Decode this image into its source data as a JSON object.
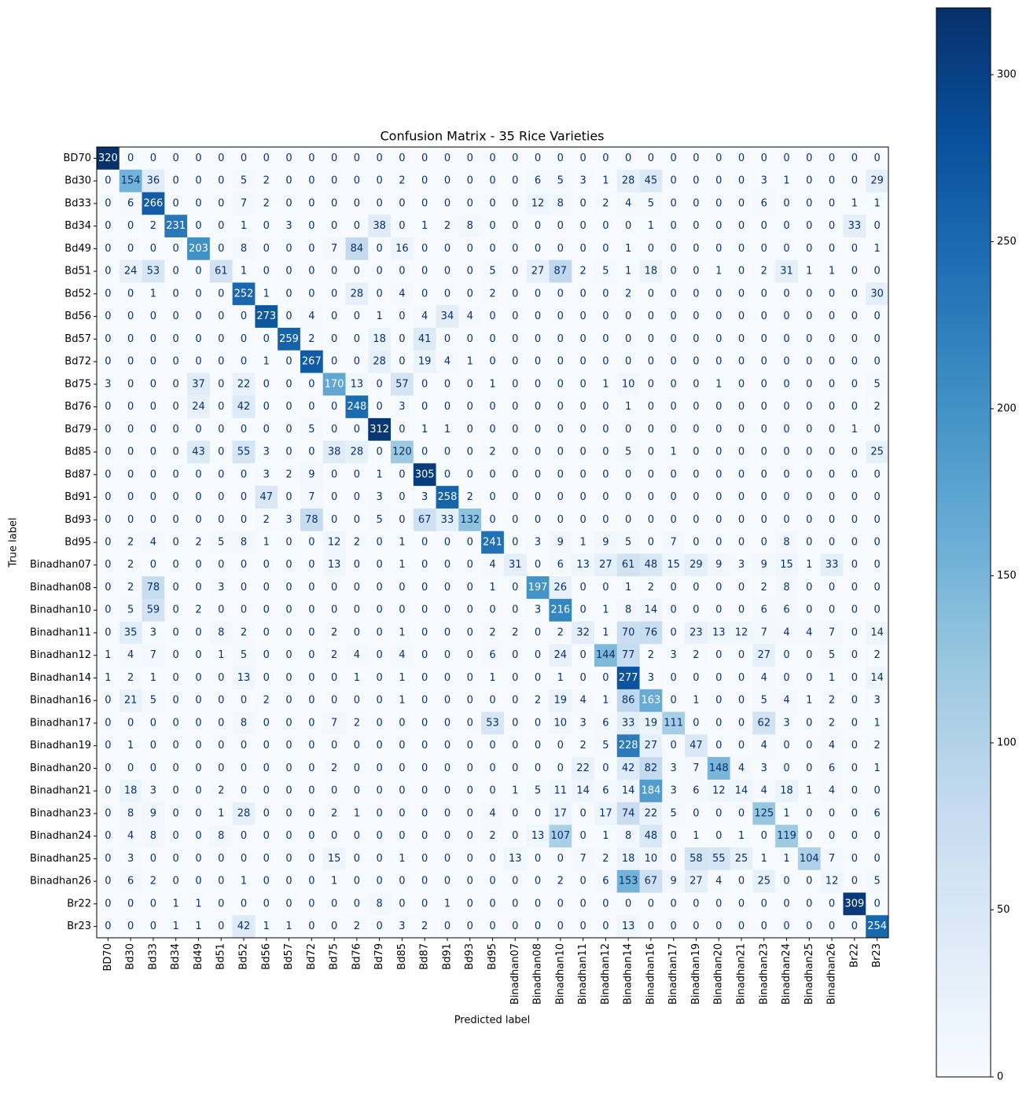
{
  "chart_data": {
    "type": "heatmap",
    "title": "Confusion Matrix - 35 Rice Varieties",
    "xlabel": "Predicted label",
    "ylabel": "True label",
    "x_categories": [
      "BD70",
      "Bd30",
      "Bd33",
      "Bd34",
      "Bd49",
      "Bd51",
      "Bd52",
      "Bd56",
      "Bd57",
      "Bd72",
      "Bd75",
      "Bd76",
      "Bd79",
      "Bd85",
      "Bd87",
      "Bd91",
      "Bd93",
      "Bd95",
      "Binadhan07",
      "Binadhan08",
      "Binadhan10",
      "Binadhan11",
      "Binadhan12",
      "Binadhan14",
      "Binadhan16",
      "Binadhan17",
      "Binadhan19",
      "Binadhan20",
      "Binadhan21",
      "Binadhan23",
      "Binadhan24",
      "Binadhan25",
      "Binadhan26",
      "Br22",
      "Br23"
    ],
    "y_categories": [
      "BD70",
      "Bd30",
      "Bd33",
      "Bd34",
      "Bd49",
      "Bd51",
      "Bd52",
      "Bd56",
      "Bd57",
      "Bd72",
      "Bd75",
      "Bd76",
      "Bd79",
      "Bd85",
      "Bd87",
      "Bd91",
      "Bd93",
      "Bd95",
      "Binadhan07",
      "Binadhan08",
      "Binadhan10",
      "Binadhan11",
      "Binadhan12",
      "Binadhan14",
      "Binadhan16",
      "Binadhan17",
      "Binadhan19",
      "Binadhan20",
      "Binadhan21",
      "Binadhan23",
      "Binadhan24",
      "Binadhan25",
      "Binadhan26",
      "Br22",
      "Br23"
    ],
    "values": [
      [
        320,
        0,
        0,
        0,
        0,
        0,
        0,
        0,
        0,
        0,
        0,
        0,
        0,
        0,
        0,
        0,
        0,
        0,
        0,
        0,
        0,
        0,
        0,
        0,
        0,
        0,
        0,
        0,
        0,
        0,
        0,
        0,
        0,
        0,
        0
      ],
      [
        0,
        154,
        36,
        0,
        0,
        0,
        5,
        2,
        0,
        0,
        0,
        0,
        0,
        2,
        0,
        0,
        0,
        0,
        0,
        6,
        5,
        3,
        1,
        28,
        45,
        0,
        0,
        0,
        0,
        3,
        1,
        0,
        0,
        0,
        29
      ],
      [
        0,
        6,
        266,
        0,
        0,
        0,
        7,
        2,
        0,
        0,
        0,
        0,
        0,
        0,
        0,
        0,
        0,
        0,
        0,
        12,
        8,
        0,
        2,
        4,
        5,
        0,
        0,
        0,
        0,
        6,
        0,
        0,
        0,
        1,
        1
      ],
      [
        0,
        0,
        2,
        231,
        0,
        0,
        1,
        0,
        3,
        0,
        0,
        0,
        38,
        0,
        1,
        2,
        8,
        0,
        0,
        0,
        0,
        0,
        0,
        0,
        1,
        0,
        0,
        0,
        0,
        0,
        0,
        0,
        0,
        33,
        0
      ],
      [
        0,
        0,
        0,
        0,
        203,
        0,
        8,
        0,
        0,
        0,
        7,
        84,
        0,
        16,
        0,
        0,
        0,
        0,
        0,
        0,
        0,
        0,
        0,
        1,
        0,
        0,
        0,
        0,
        0,
        0,
        0,
        0,
        0,
        0,
        1
      ],
      [
        0,
        24,
        53,
        0,
        0,
        61,
        1,
        0,
        0,
        0,
        0,
        0,
        0,
        0,
        0,
        0,
        0,
        5,
        0,
        27,
        87,
        2,
        5,
        1,
        18,
        0,
        0,
        1,
        0,
        2,
        31,
        1,
        1,
        0,
        0
      ],
      [
        0,
        0,
        1,
        0,
        0,
        0,
        252,
        1,
        0,
        0,
        0,
        28,
        0,
        4,
        0,
        0,
        0,
        2,
        0,
        0,
        0,
        0,
        0,
        2,
        0,
        0,
        0,
        0,
        0,
        0,
        0,
        0,
        0,
        0,
        30
      ],
      [
        0,
        0,
        0,
        0,
        0,
        0,
        0,
        273,
        0,
        4,
        0,
        0,
        1,
        0,
        4,
        34,
        4,
        0,
        0,
        0,
        0,
        0,
        0,
        0,
        0,
        0,
        0,
        0,
        0,
        0,
        0,
        0,
        0,
        0,
        0
      ],
      [
        0,
        0,
        0,
        0,
        0,
        0,
        0,
        0,
        259,
        2,
        0,
        0,
        18,
        0,
        41,
        0,
        0,
        0,
        0,
        0,
        0,
        0,
        0,
        0,
        0,
        0,
        0,
        0,
        0,
        0,
        0,
        0,
        0,
        0,
        0
      ],
      [
        0,
        0,
        0,
        0,
        0,
        0,
        0,
        1,
        0,
        267,
        0,
        0,
        28,
        0,
        19,
        4,
        1,
        0,
        0,
        0,
        0,
        0,
        0,
        0,
        0,
        0,
        0,
        0,
        0,
        0,
        0,
        0,
        0,
        0,
        0
      ],
      [
        3,
        0,
        0,
        0,
        37,
        0,
        22,
        0,
        0,
        0,
        170,
        13,
        0,
        57,
        0,
        0,
        0,
        1,
        0,
        0,
        0,
        0,
        1,
        10,
        0,
        0,
        0,
        1,
        0,
        0,
        0,
        0,
        0,
        0,
        5
      ],
      [
        0,
        0,
        0,
        0,
        24,
        0,
        42,
        0,
        0,
        0,
        0,
        248,
        0,
        3,
        0,
        0,
        0,
        0,
        0,
        0,
        0,
        0,
        0,
        1,
        0,
        0,
        0,
        0,
        0,
        0,
        0,
        0,
        0,
        0,
        2
      ],
      [
        0,
        0,
        0,
        0,
        0,
        0,
        0,
        0,
        0,
        5,
        0,
        0,
        312,
        0,
        1,
        1,
        0,
        0,
        0,
        0,
        0,
        0,
        0,
        0,
        0,
        0,
        0,
        0,
        0,
        0,
        0,
        0,
        0,
        1,
        0
      ],
      [
        0,
        0,
        0,
        0,
        43,
        0,
        55,
        3,
        0,
        0,
        38,
        28,
        0,
        120,
        0,
        0,
        0,
        2,
        0,
        0,
        0,
        0,
        0,
        5,
        0,
        1,
        0,
        0,
        0,
        0,
        0,
        0,
        0,
        0,
        25
      ],
      [
        0,
        0,
        0,
        0,
        0,
        0,
        0,
        3,
        2,
        9,
        0,
        0,
        1,
        0,
        305,
        0,
        0,
        0,
        0,
        0,
        0,
        0,
        0,
        0,
        0,
        0,
        0,
        0,
        0,
        0,
        0,
        0,
        0,
        0,
        0
      ],
      [
        0,
        0,
        0,
        0,
        0,
        0,
        0,
        47,
        0,
        7,
        0,
        0,
        3,
        0,
        3,
        258,
        2,
        0,
        0,
        0,
        0,
        0,
        0,
        0,
        0,
        0,
        0,
        0,
        0,
        0,
        0,
        0,
        0,
        0,
        0
      ],
      [
        0,
        0,
        0,
        0,
        0,
        0,
        0,
        2,
        3,
        78,
        0,
        0,
        5,
        0,
        67,
        33,
        132,
        0,
        0,
        0,
        0,
        0,
        0,
        0,
        0,
        0,
        0,
        0,
        0,
        0,
        0,
        0,
        0,
        0,
        0
      ],
      [
        0,
        2,
        4,
        0,
        2,
        5,
        8,
        1,
        0,
        0,
        12,
        2,
        0,
        1,
        0,
        0,
        0,
        241,
        0,
        3,
        9,
        1,
        9,
        5,
        0,
        7,
        0,
        0,
        0,
        0,
        8,
        0,
        0,
        0,
        0
      ],
      [
        0,
        2,
        0,
        0,
        0,
        0,
        0,
        0,
        0,
        0,
        13,
        0,
        0,
        1,
        0,
        0,
        0,
        4,
        31,
        0,
        6,
        13,
        27,
        61,
        48,
        15,
        29,
        9,
        3,
        9,
        15,
        1,
        33,
        0,
        0
      ],
      [
        0,
        2,
        78,
        0,
        0,
        3,
        0,
        0,
        0,
        0,
        0,
        0,
        0,
        0,
        0,
        0,
        0,
        1,
        0,
        197,
        26,
        0,
        0,
        1,
        2,
        0,
        0,
        0,
        0,
        2,
        8,
        0,
        0,
        0,
        0
      ],
      [
        0,
        5,
        59,
        0,
        2,
        0,
        0,
        0,
        0,
        0,
        0,
        0,
        0,
        0,
        0,
        0,
        0,
        0,
        0,
        3,
        216,
        0,
        1,
        8,
        14,
        0,
        0,
        0,
        0,
        6,
        6,
        0,
        0,
        0,
        0
      ],
      [
        0,
        35,
        3,
        0,
        0,
        8,
        2,
        0,
        0,
        0,
        2,
        0,
        0,
        1,
        0,
        0,
        0,
        2,
        2,
        0,
        2,
        32,
        1,
        70,
        76,
        0,
        23,
        13,
        12,
        7,
        4,
        4,
        7,
        0,
        14
      ],
      [
        1,
        4,
        7,
        0,
        0,
        1,
        5,
        0,
        0,
        0,
        2,
        4,
        0,
        4,
        0,
        0,
        0,
        6,
        0,
        0,
        24,
        0,
        144,
        77,
        2,
        3,
        2,
        0,
        0,
        27,
        0,
        0,
        5,
        0,
        2
      ],
      [
        1,
        2,
        1,
        0,
        0,
        0,
        13,
        0,
        0,
        0,
        0,
        1,
        0,
        1,
        0,
        0,
        0,
        1,
        0,
        0,
        1,
        0,
        0,
        277,
        3,
        0,
        0,
        0,
        0,
        4,
        0,
        0,
        1,
        0,
        14
      ],
      [
        0,
        21,
        5,
        0,
        0,
        0,
        0,
        2,
        0,
        0,
        0,
        0,
        0,
        1,
        0,
        0,
        0,
        0,
        0,
        2,
        19,
        4,
        1,
        86,
        163,
        0,
        1,
        0,
        0,
        5,
        4,
        1,
        2,
        0,
        3
      ],
      [
        0,
        0,
        0,
        0,
        0,
        0,
        8,
        0,
        0,
        0,
        7,
        2,
        0,
        0,
        0,
        0,
        0,
        53,
        0,
        0,
        10,
        3,
        6,
        33,
        19,
        111,
        0,
        0,
        0,
        62,
        3,
        0,
        2,
        0,
        1
      ],
      [
        0,
        1,
        0,
        0,
        0,
        0,
        0,
        0,
        0,
        0,
        0,
        0,
        0,
        0,
        0,
        0,
        0,
        0,
        0,
        0,
        0,
        2,
        5,
        228,
        27,
        0,
        47,
        0,
        0,
        4,
        0,
        0,
        4,
        0,
        2
      ],
      [
        0,
        0,
        0,
        0,
        0,
        0,
        0,
        0,
        0,
        0,
        2,
        0,
        0,
        0,
        0,
        0,
        0,
        0,
        0,
        0,
        0,
        22,
        0,
        42,
        82,
        3,
        7,
        148,
        4,
        3,
        0,
        0,
        6,
        0,
        1
      ],
      [
        0,
        18,
        3,
        0,
        0,
        2,
        0,
        0,
        0,
        0,
        0,
        0,
        0,
        0,
        0,
        0,
        0,
        0,
        1,
        5,
        11,
        14,
        6,
        14,
        184,
        3,
        6,
        12,
        14,
        4,
        18,
        1,
        4,
        0,
        0
      ],
      [
        0,
        8,
        9,
        0,
        0,
        1,
        28,
        0,
        0,
        0,
        2,
        1,
        0,
        0,
        0,
        0,
        0,
        4,
        0,
        0,
        17,
        0,
        17,
        74,
        22,
        5,
        0,
        0,
        0,
        125,
        1,
        0,
        0,
        0,
        6
      ],
      [
        0,
        4,
        8,
        0,
        0,
        8,
        0,
        0,
        0,
        0,
        0,
        0,
        0,
        0,
        0,
        0,
        0,
        2,
        0,
        13,
        107,
        0,
        1,
        8,
        48,
        0,
        1,
        0,
        1,
        0,
        119,
        0,
        0,
        0,
        0
      ],
      [
        0,
        3,
        0,
        0,
        0,
        0,
        0,
        0,
        0,
        0,
        15,
        0,
        0,
        1,
        0,
        0,
        0,
        0,
        13,
        0,
        0,
        7,
        2,
        18,
        10,
        0,
        58,
        55,
        25,
        1,
        1,
        104,
        7,
        0,
        0
      ],
      [
        0,
        6,
        2,
        0,
        0,
        0,
        1,
        0,
        0,
        0,
        1,
        0,
        0,
        0,
        0,
        0,
        0,
        0,
        0,
        0,
        2,
        0,
        6,
        153,
        67,
        9,
        27,
        4,
        0,
        25,
        0,
        0,
        12,
        0,
        5
      ],
      [
        0,
        0,
        0,
        1,
        1,
        0,
        0,
        0,
        0,
        0,
        0,
        0,
        8,
        0,
        0,
        1,
        0,
        0,
        0,
        0,
        0,
        0,
        0,
        0,
        0,
        0,
        0,
        0,
        0,
        0,
        0,
        0,
        0,
        309,
        0
      ],
      [
        0,
        0,
        0,
        1,
        1,
        0,
        42,
        1,
        1,
        0,
        0,
        2,
        0,
        3,
        2,
        0,
        0,
        0,
        0,
        0,
        0,
        0,
        0,
        13,
        0,
        0,
        0,
        0,
        0,
        0,
        0,
        0,
        0,
        0,
        254
      ]
    ],
    "clim": [
      0,
      320
    ],
    "cticks": [
      0,
      50,
      100,
      150,
      200,
      250,
      300
    ],
    "colorscale": [
      "#f7fbff",
      "#deebf7",
      "#c6dbef",
      "#9ecae1",
      "#6baed6",
      "#4292c6",
      "#2171b5",
      "#08519c",
      "#08306b"
    ],
    "text_colors": [
      "#08306b",
      "#ffffff"
    ]
  }
}
